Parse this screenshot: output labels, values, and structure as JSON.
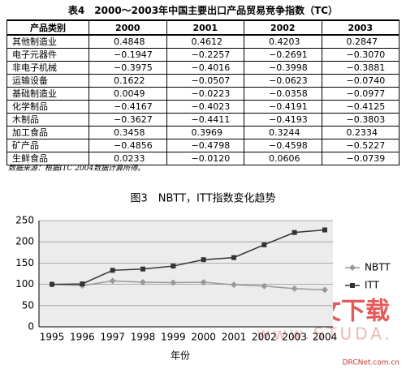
{
  "table_title": "表4　2000～2003年中国主要出口产品贸易竞争指数（TC）",
  "table": {
    "header": [
      "产品类别",
      "2000",
      "2001",
      "2002",
      "2003"
    ],
    "rows": [
      [
        "其他制造业",
        "0.4848",
        "0.4612",
        "0.4203",
        "0.2847"
      ],
      [
        "电子元器件",
        "−0.1947",
        "−0.2257",
        "−0.2691",
        "−0.3070"
      ],
      [
        "非电子机械",
        "−0.3975",
        "−0.4016",
        "−0.3998",
        "−0.3881"
      ],
      [
        "运输设备",
        "0.1622",
        "−0.0507",
        "−0.0623",
        "−0.0740"
      ],
      [
        "基础制造业",
        "0.0049",
        "−0.0223",
        "−0.0358",
        "−0.0977"
      ],
      [
        "化学制品",
        "−0.4167",
        "−0.4023",
        "−0.4191",
        "−0.4125"
      ],
      [
        "木制品",
        "−0.3627",
        "−0.4411",
        "−0.4193",
        "−0.3803"
      ],
      [
        "加工食品",
        "0.3458",
        "0.3969",
        "0.3244",
        "0.2334"
      ],
      [
        "矿产品",
        "−0.4856",
        "−0.4798",
        "−0.4598",
        "−0.5227"
      ],
      [
        "生鲜食品",
        "0.0233",
        "−0.0120",
        "0.0606",
        "−0.0739"
      ]
    ]
  },
  "source_note": "数据来源：根据ITC 2004数据计算所得。",
  "figure": {
    "type": "line",
    "title": "图3　NBTT，ITT指数变化趋势",
    "x_label": "年份",
    "categories": [
      1995,
      1996,
      1997,
      1998,
      1999,
      2000,
      2001,
      2002,
      2003,
      2004
    ],
    "series": [
      {
        "name": "NBTT",
        "color": "#999999",
        "marker": "diamond",
        "values": [
          100,
          97,
          108,
          105,
          104,
          105,
          99,
          96,
          90,
          87
        ]
      },
      {
        "name": "ITT",
        "color": "#333333",
        "marker": "square",
        "values": [
          100,
          101,
          133,
          136,
          143,
          158,
          163,
          193,
          222,
          228
        ]
      }
    ],
    "ylim": [
      0,
      250
    ],
    "yticks": [
      0,
      50,
      100,
      150,
      200,
      250
    ],
    "grid": true
  },
  "watermark": {
    "main": "中国论文下载",
    "url": "www.STUDA.",
    "site": "DRCNet.com.cn"
  }
}
